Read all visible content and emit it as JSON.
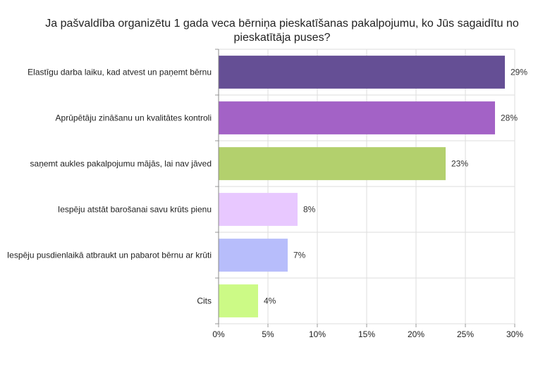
{
  "chart_data": {
    "type": "bar",
    "orientation": "horizontal",
    "title_lines": [
      "Ja pašvaldība organizētu 1 gada veca bērniņa pieskatīšanas pakalpojumu, ko Jūs sagaidītu no",
      "pieskatītāja puses?"
    ],
    "categories": [
      "Elastīgu darba laiku, kad atvest un paņemt bērnu",
      "Aprūpētāju zināšanu un kvalitātes kontroli",
      "saņemt aukles pakalpojumu mājās, lai nav jāved",
      "Iespēju atstāt barošanai savu krūts pienu",
      "Iespēju pusdienlaikā atbraukt un pabarot bērnu ar krūti",
      "Cits"
    ],
    "values": [
      29,
      28,
      23,
      8,
      7,
      4
    ],
    "value_labels": [
      "29%",
      "28%",
      "23%",
      "8%",
      "7%",
      "4%"
    ],
    "colors": [
      "#654f95",
      "#a362c6",
      "#b3d06d",
      "#e8c8ff",
      "#b7bdfb",
      "#ccfa86"
    ],
    "xlim": [
      0,
      30
    ],
    "xticks": [
      0,
      5,
      10,
      15,
      20,
      25,
      30
    ],
    "xtick_labels": [
      "0%",
      "5%",
      "10%",
      "15%",
      "20%",
      "25%",
      "30%"
    ],
    "grid": true,
    "legend": "none"
  }
}
